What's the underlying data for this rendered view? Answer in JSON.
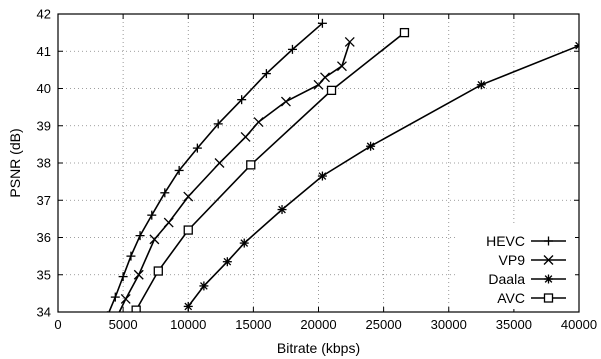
{
  "chart_data": {
    "type": "line",
    "title": "",
    "xlabel": "Bitrate (kbps)",
    "ylabel": "PSNR (dB)",
    "xlim": [
      0,
      40000
    ],
    "ylim": [
      34,
      42
    ],
    "xticks": [
      0,
      5000,
      10000,
      15000,
      20000,
      25000,
      30000,
      35000,
      40000
    ],
    "yticks": [
      34,
      35,
      36,
      37,
      38,
      39,
      40,
      41,
      42
    ],
    "grid": true,
    "legend_position": "bottom-right",
    "series": [
      {
        "name": "HEVC",
        "marker": "plus",
        "points": [
          [
            3800,
            33.9
          ],
          [
            4400,
            34.4
          ],
          [
            5000,
            34.95
          ],
          [
            5600,
            35.5
          ],
          [
            6300,
            36.05
          ],
          [
            7200,
            36.6
          ],
          [
            8200,
            37.2
          ],
          [
            9300,
            37.8
          ],
          [
            10700,
            38.4
          ],
          [
            12300,
            39.05
          ],
          [
            14100,
            39.7
          ],
          [
            16000,
            40.4
          ],
          [
            18000,
            41.05
          ],
          [
            20300,
            41.75
          ]
        ]
      },
      {
        "name": "VP9",
        "marker": "x",
        "points": [
          [
            4500,
            33.85
          ],
          [
            5200,
            34.35
          ],
          [
            6200,
            35.0
          ],
          [
            7400,
            35.95
          ],
          [
            8500,
            36.4
          ],
          [
            10000,
            37.1
          ],
          [
            12400,
            38.0
          ],
          [
            14400,
            38.7
          ],
          [
            15400,
            39.1
          ],
          [
            17500,
            39.65
          ],
          [
            20000,
            40.1
          ],
          [
            20500,
            40.3
          ],
          [
            21800,
            40.6
          ],
          [
            22400,
            41.25
          ]
        ]
      },
      {
        "name": "Daala",
        "marker": "star",
        "points": [
          [
            10000,
            34.15
          ],
          [
            11200,
            34.7
          ],
          [
            13000,
            35.35
          ],
          [
            14300,
            35.85
          ],
          [
            17200,
            36.75
          ],
          [
            20300,
            37.65
          ],
          [
            24000,
            38.45
          ],
          [
            32500,
            40.1
          ],
          [
            40000,
            41.15
          ]
        ]
      },
      {
        "name": "AVC",
        "marker": "square",
        "points": [
          [
            5300,
            33.7
          ],
          [
            6000,
            34.05
          ],
          [
            7700,
            35.1
          ],
          [
            10000,
            36.2
          ],
          [
            14800,
            37.95
          ],
          [
            21000,
            39.95
          ],
          [
            26600,
            41.5
          ]
        ]
      }
    ]
  }
}
